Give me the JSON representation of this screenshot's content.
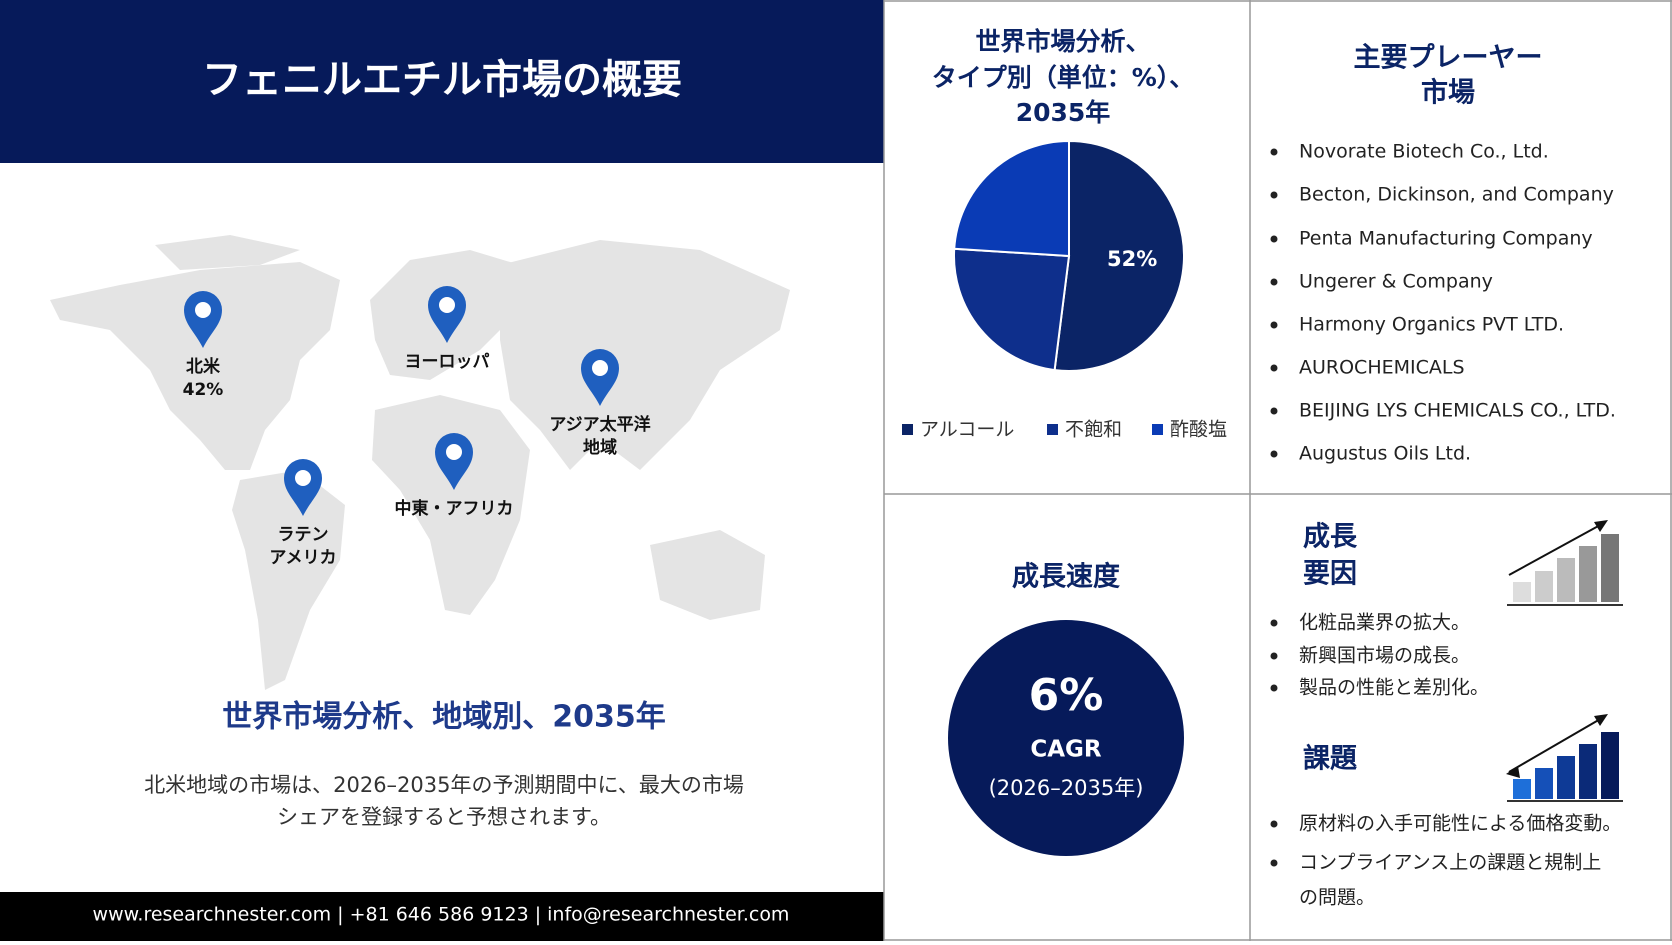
{
  "header": {
    "title": "フェニルエチル市場の概要"
  },
  "map": {
    "regions": [
      {
        "name": "北米",
        "share": "42%"
      },
      {
        "name": "ヨーロッパ"
      },
      {
        "name": "アジア太平洋",
        "name2": "地域"
      },
      {
        "name": "ラテン",
        "name2": "アメリカ"
      },
      {
        "name": "中東・アフリカ"
      }
    ],
    "title": "世界市場分析、地域別、2035年",
    "description": [
      "北米地域の市場は、2026–2035年の予測期間中に、最大の市場",
      "シェアを登録すると予想されます。"
    ]
  },
  "footer": {
    "contact": "www.researchnester.com | +81 646 586 9123 | info@researchnester.com"
  },
  "pie_chart": {
    "type": "pie",
    "title": [
      "世界市場分析、",
      "タイプ別（単位：%）、",
      "2035年"
    ],
    "categories": [
      "アルコール",
      "不飽和",
      "酢酸塩"
    ],
    "values": [
      52,
      24,
      24
    ],
    "value_labels": [
      "52%",
      null,
      null
    ],
    "colors": [
      "#0b2466",
      "#0e2f8c",
      "#0a3bb5"
    ]
  },
  "players": {
    "title": [
      "主要プレーヤー",
      "市場"
    ],
    "items": [
      "Novorate Biotech Co., Ltd.",
      "Becton, Dickinson, and Company",
      "Penta Manufacturing Company",
      "Ungerer & Company",
      "Harmony Organics PVT LTD.",
      "AUROCHEMICALS",
      "BEIJING LYS CHEMICALS CO., LTD.",
      "Augustus Oils Ltd."
    ]
  },
  "growth_rate": {
    "title": "成長速度",
    "value": "6%",
    "label": "CAGR",
    "period": "(2026–2035年)"
  },
  "drivers": {
    "title": [
      "成長",
      "要因"
    ],
    "items": [
      "化粧品業界の拡大。",
      "新興国市場の成長。",
      "製品の性能と差別化。"
    ]
  },
  "challenges": {
    "title": "課題",
    "items": [
      "原材料の入手可能性による価格変動。",
      "コンプライアンス上の課題と規制上",
      "の問題。"
    ]
  }
}
